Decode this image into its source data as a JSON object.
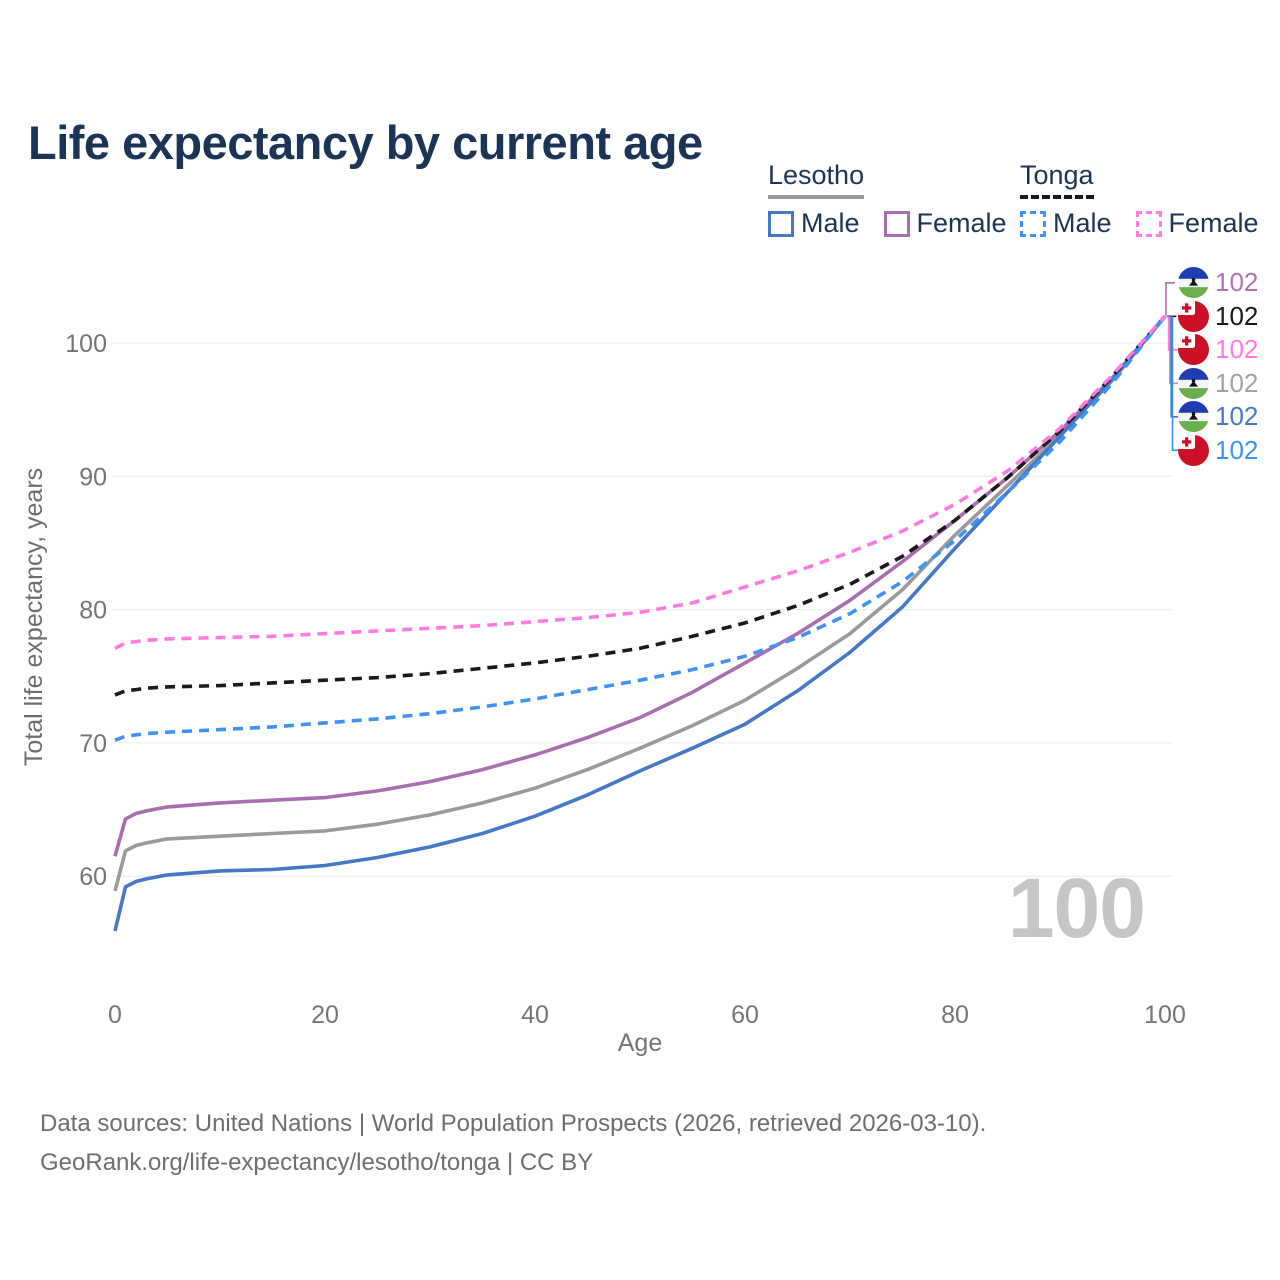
{
  "title": "Life expectancy by current age",
  "legend": {
    "groups": [
      {
        "country": "Lesotho",
        "line_style": "solid",
        "underline_color": "#9a9a9a",
        "items": [
          {
            "label": "Male",
            "color": "#4678c8"
          },
          {
            "label": "Female",
            "color": "#a76fae"
          }
        ]
      },
      {
        "country": "Tonga",
        "line_style": "dashed",
        "underline_color": "#1a1a1a",
        "items": [
          {
            "label": "Male",
            "color": "#3f93f6"
          },
          {
            "label": "Female",
            "color": "#ff7ae1"
          }
        ]
      }
    ]
  },
  "axes": {
    "x_label": "Age",
    "y_label": "Total life expectancy, years",
    "x_ticks": [
      "0",
      "20",
      "40",
      "60",
      "80",
      "100"
    ],
    "y_ticks": [
      "60",
      "70",
      "80",
      "90",
      "100"
    ]
  },
  "watermark": "100",
  "footer": {
    "line1": "Data sources: United Nations | World Population Prospects (2026, retrieved 2026-03-10).",
    "line2": "GeoRank.org/life-expectancy/lesotho/tonga | CC BY"
  },
  "flag_colors": {
    "lesotho": {
      "blue": "#1d3db0",
      "white": "#f4f6f8",
      "green": "#6aae4d",
      "hat": "#111111"
    },
    "tonga": {
      "red": "#cc1126",
      "white": "#ffffff"
    }
  },
  "chart_data": {
    "type": "line",
    "title": "Life expectancy by current age",
    "xlabel": "Age",
    "ylabel": "Total life expectancy, years",
    "xlim": [
      0,
      100
    ],
    "ylim": [
      55,
      105
    ],
    "grid": true,
    "legend_position": "top-right",
    "x": [
      0,
      1,
      2,
      3,
      5,
      10,
      15,
      20,
      25,
      30,
      35,
      40,
      45,
      50,
      55,
      60,
      65,
      70,
      75,
      80,
      85,
      90,
      95,
      100
    ],
    "series": [
      {
        "name": "Lesotho Male",
        "country": "lesotho",
        "category": "Male",
        "dash": false,
        "color": "#4678c8",
        "values": [
          55.9,
          59.2,
          59.6,
          59.8,
          60.1,
          60.4,
          60.5,
          60.8,
          61.4,
          62.2,
          63.2,
          64.5,
          66.1,
          67.9,
          69.6,
          71.4,
          73.9,
          76.8,
          80.2,
          84.6,
          88.8,
          93.0,
          97.3,
          102
        ]
      },
      {
        "name": "Lesotho Female",
        "country": "lesotho",
        "category": "Female",
        "dash": false,
        "color": "#a76fae",
        "values": [
          61.5,
          64.3,
          64.7,
          64.9,
          65.2,
          65.5,
          65.7,
          65.9,
          66.4,
          67.1,
          68.0,
          69.1,
          70.4,
          71.9,
          73.8,
          76.0,
          78.2,
          80.7,
          83.6,
          86.7,
          89.9,
          93.4,
          97.4,
          102
        ]
      },
      {
        "name": "Lesotho Both sexes",
        "country": "lesotho",
        "category": "Total",
        "dash": false,
        "color": "#9a9a9a",
        "values": [
          58.9,
          61.9,
          62.3,
          62.5,
          62.8,
          63.0,
          63.2,
          63.4,
          63.9,
          64.6,
          65.5,
          66.6,
          68.0,
          69.6,
          71.3,
          73.2,
          75.6,
          78.2,
          81.5,
          85.6,
          89.3,
          93.1,
          97.2,
          102
        ]
      },
      {
        "name": "Tonga Male",
        "country": "tonga",
        "category": "Male",
        "dash": true,
        "color": "#3f93f6",
        "values": [
          70.2,
          70.5,
          70.6,
          70.7,
          70.8,
          71.0,
          71.2,
          71.5,
          71.8,
          72.2,
          72.7,
          73.3,
          74.0,
          74.7,
          75.5,
          76.5,
          77.9,
          79.7,
          82.1,
          85.2,
          88.8,
          92.6,
          97.0,
          102
        ]
      },
      {
        "name": "Tonga Female",
        "country": "tonga",
        "category": "Female",
        "dash": true,
        "color": "#ff7ae1",
        "values": [
          77.1,
          77.5,
          77.6,
          77.7,
          77.8,
          77.9,
          78.0,
          78.2,
          78.4,
          78.6,
          78.8,
          79.1,
          79.4,
          79.8,
          80.5,
          81.7,
          82.9,
          84.3,
          85.9,
          87.9,
          90.4,
          93.6,
          97.6,
          102
        ]
      },
      {
        "name": "Tonga Both sexes",
        "country": "tonga",
        "category": "Total",
        "dash": true,
        "color": "#1a1a1a",
        "values": [
          73.6,
          73.9,
          74.0,
          74.1,
          74.2,
          74.3,
          74.5,
          74.7,
          74.9,
          75.2,
          75.6,
          76.0,
          76.5,
          77.1,
          78.0,
          79.0,
          80.3,
          81.9,
          84.0,
          86.7,
          89.9,
          93.4,
          97.5,
          102
        ]
      }
    ],
    "endpoint_labels": [
      {
        "label": "102",
        "series": "Lesotho Female",
        "flag": "lesotho",
        "color": "#b273b6"
      },
      {
        "label": "102",
        "series": "Tonga Both sexes",
        "flag": "tonga",
        "color": "#1a1a1a"
      },
      {
        "label": "102",
        "series": "Tonga Female",
        "flag": "tonga",
        "color": "#ff7ae1"
      },
      {
        "label": "102",
        "series": "Lesotho Both sexes",
        "flag": "lesotho",
        "color": "#a3a3a3"
      },
      {
        "label": "102",
        "series": "Lesotho Male",
        "flag": "lesotho",
        "color": "#4678c8"
      },
      {
        "label": "102",
        "series": "Tonga Male",
        "flag": "tonga",
        "color": "#3f93f6"
      }
    ]
  }
}
